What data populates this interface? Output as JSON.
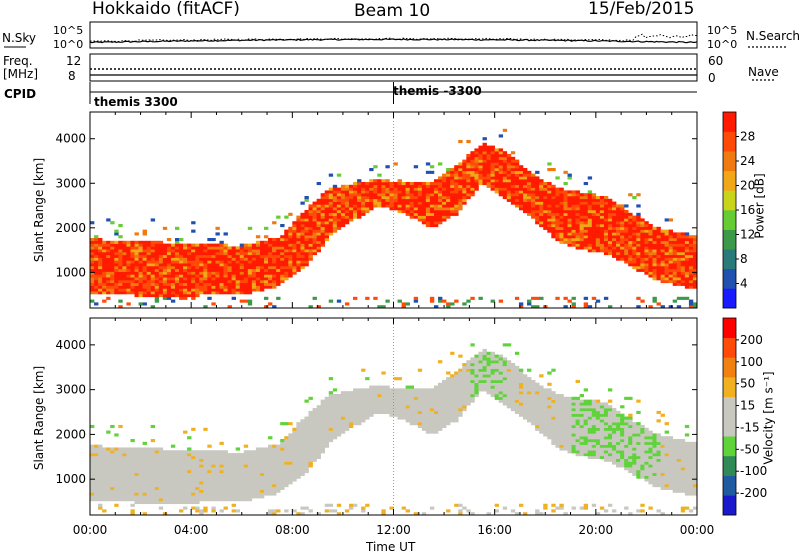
{
  "header": {
    "radar": "Hokkaido (fitACF)",
    "beam": "Beam 10",
    "date": "15/Feb/2015"
  },
  "top_panels": {
    "nsky_label": "N.Sky",
    "nsky_ticks": [
      "10^5",
      "10^0"
    ],
    "nsearch_label": "N.Search",
    "nsearch_ticks": [
      "10^5",
      "10^0"
    ],
    "freq_label_line1": "Freq.",
    "freq_label_line2": "[MHz]",
    "freq_ticks": [
      "12",
      "8"
    ],
    "nave_label": "Nave",
    "nave_ticks": [
      "60",
      "0"
    ],
    "cpid_label": "CPID",
    "cpid_segments": [
      {
        "start_hour": 0,
        "label": "themis 3300"
      },
      {
        "start_hour": 12,
        "label": "themis -3300"
      }
    ]
  },
  "chart_data": [
    {
      "type": "heatmap",
      "name": "power",
      "ylabel": "Slant Range [km]",
      "xlabel": "Time UT",
      "x_range_hours": [
        0,
        24
      ],
      "ylim": [
        200,
        4600
      ],
      "y_ticks": [
        "1000",
        "2000",
        "3000",
        "4000"
      ],
      "y_tick_values": [
        1000,
        2000,
        3000,
        4000
      ],
      "colorbar": {
        "label": "Power [dB]",
        "ticks": [
          "4",
          "8",
          "12",
          "16",
          "20",
          "24",
          "28"
        ],
        "colors": [
          "#1a1aff",
          "#2050b0",
          "#2a7a7a",
          "#3a9a4a",
          "#66cc33",
          "#c8d41a",
          "#f0a818",
          "#f07a10",
          "#ff4a08",
          "#ff1a00"
        ]
      },
      "bands": [
        {
          "t": 0.0,
          "lo": 500,
          "hi": 1750
        },
        {
          "t": 2.0,
          "lo": 480,
          "hi": 1700
        },
        {
          "t": 4.0,
          "lo": 480,
          "hi": 1650
        },
        {
          "t": 6.0,
          "lo": 500,
          "hi": 1600
        },
        {
          "t": 7.5,
          "lo": 700,
          "hi": 1800
        },
        {
          "t": 8.5,
          "lo": 1100,
          "hi": 2400
        },
        {
          "t": 9.5,
          "lo": 1800,
          "hi": 2900
        },
        {
          "t": 10.5,
          "lo": 2200,
          "hi": 3000
        },
        {
          "t": 11.5,
          "lo": 2500,
          "hi": 3100
        },
        {
          "t": 12.5,
          "lo": 2300,
          "hi": 3000
        },
        {
          "t": 13.5,
          "lo": 2000,
          "hi": 3000
        },
        {
          "t": 14.5,
          "lo": 2300,
          "hi": 3400
        },
        {
          "t": 15.5,
          "lo": 3000,
          "hi": 3900
        },
        {
          "t": 16.5,
          "lo": 2600,
          "hi": 3700
        },
        {
          "t": 17.5,
          "lo": 2200,
          "hi": 3200
        },
        {
          "t": 18.5,
          "lo": 1700,
          "hi": 2900
        },
        {
          "t": 19.5,
          "lo": 1500,
          "hi": 2800
        },
        {
          "t": 20.5,
          "lo": 1400,
          "hi": 2700
        },
        {
          "t": 21.5,
          "lo": 1100,
          "hi": 2300
        },
        {
          "t": 22.5,
          "lo": 800,
          "hi": 2000
        },
        {
          "t": 24.0,
          "lo": 600,
          "hi": 1800
        }
      ]
    },
    {
      "type": "heatmap",
      "name": "velocity",
      "ylabel": "Slant Range [km]",
      "xlabel": "Time UT",
      "x_range_hours": [
        0,
        24
      ],
      "ylim": [
        200,
        4600
      ],
      "y_ticks": [
        "1000",
        "2000",
        "3000",
        "4000"
      ],
      "y_tick_values": [
        1000,
        2000,
        3000,
        4000
      ],
      "colorbar": {
        "label": "Velocity [m s⁻¹]",
        "ticks": [
          "200",
          "100",
          "50",
          "15",
          "-15",
          "-50",
          "-100",
          "-200"
        ],
        "colors": [
          "#1a1acc",
          "#205aa0",
          "#2f8a55",
          "#5fd33a",
          "#c8c8c0",
          "#c8c8c0",
          "#f0b020",
          "#f08010",
          "#ff4a08",
          "#ff0000"
        ]
      }
    }
  ],
  "x_axis": {
    "ticks": [
      "00:00",
      "04:00",
      "08:00",
      "12:00",
      "16:00",
      "20:00",
      "00:00"
    ],
    "label": "Time UT"
  }
}
